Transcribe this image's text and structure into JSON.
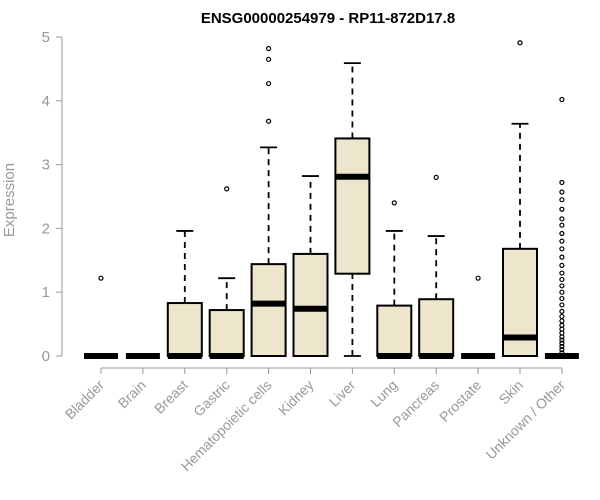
{
  "chart_data": {
    "type": "box",
    "title": "ENSG00000254979 - RP11-872D17.8",
    "ylabel": "Expression",
    "xlabel": "",
    "ylim": [
      0,
      5
    ],
    "yticks": [
      0,
      1,
      2,
      3,
      4,
      5
    ],
    "box_color": "#ede6cd",
    "categories": [
      "Bladder",
      "Brain",
      "Breast",
      "Gastric",
      "Hematopoietic cells",
      "Kidney",
      "Liver",
      "Lung",
      "Pancreas",
      "Prostate",
      "Skin",
      "Unknown / Other"
    ],
    "boxes": [
      {
        "label": "Bladder",
        "min": 0,
        "q1": 0,
        "median": 0,
        "q3": 0,
        "max": 0,
        "outliers": [
          1.22
        ]
      },
      {
        "label": "Brain",
        "min": 0,
        "q1": 0,
        "median": 0,
        "q3": 0,
        "max": 0,
        "outliers": []
      },
      {
        "label": "Breast",
        "min": 0,
        "q1": 0,
        "median": 0,
        "q3": 0.83,
        "max": 1.96,
        "outliers": []
      },
      {
        "label": "Gastric",
        "min": 0,
        "q1": 0,
        "median": 0,
        "q3": 0.72,
        "max": 1.22,
        "outliers": [
          2.62
        ]
      },
      {
        "label": "Hematopoietic cells",
        "min": 0,
        "q1": 0,
        "median": 0.82,
        "q3": 1.44,
        "max": 3.27,
        "outliers": [
          3.68,
          4.27,
          4.65,
          4.82
        ]
      },
      {
        "label": "Kidney",
        "min": 0,
        "q1": 0,
        "median": 0.74,
        "q3": 1.6,
        "max": 2.82,
        "outliers": []
      },
      {
        "label": "Liver",
        "min": 0,
        "q1": 1.29,
        "median": 2.81,
        "q3": 3.41,
        "max": 4.59,
        "outliers": []
      },
      {
        "label": "Lung",
        "min": 0,
        "q1": 0,
        "median": 0,
        "q3": 0.79,
        "max": 1.96,
        "outliers": [
          2.4
        ]
      },
      {
        "label": "Pancreas",
        "min": 0,
        "q1": 0,
        "median": 0,
        "q3": 0.89,
        "max": 1.88,
        "outliers": [
          2.8
        ]
      },
      {
        "label": "Prostate",
        "min": 0,
        "q1": 0,
        "median": 0,
        "q3": 0,
        "max": 0,
        "outliers": [
          1.22
        ]
      },
      {
        "label": "Skin",
        "min": 0,
        "q1": 0,
        "median": 0.29,
        "q3": 1.68,
        "max": 3.64,
        "outliers": [
          4.91
        ]
      },
      {
        "label": "Unknown / Other",
        "min": 0,
        "q1": 0,
        "median": 0,
        "q3": 0,
        "max": 0,
        "outliers": [
          0.05,
          0.1,
          0.15,
          0.2,
          0.25,
          0.3,
          0.36,
          0.42,
          0.48,
          0.55,
          0.62,
          0.7,
          0.8,
          0.9,
          1.0,
          1.1,
          1.2,
          1.3,
          1.42,
          1.55,
          1.68,
          1.8,
          1.92,
          2.05,
          2.15,
          2.3,
          2.45,
          2.57,
          2.72,
          4.02
        ]
      }
    ]
  }
}
